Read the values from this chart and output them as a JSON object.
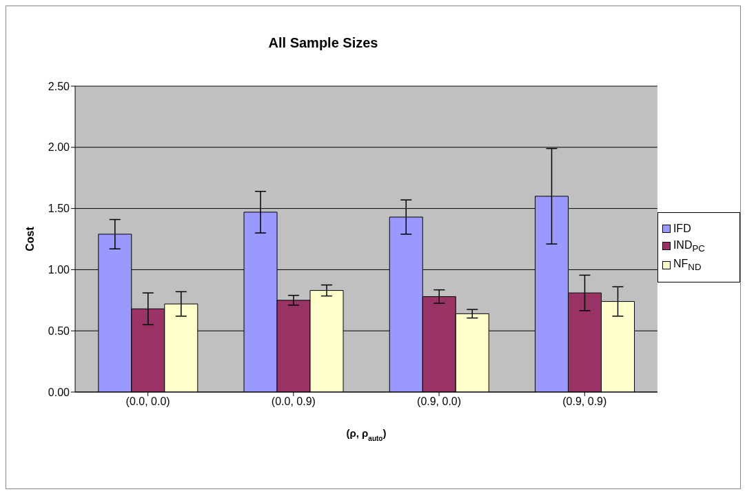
{
  "chart_data": {
    "type": "bar",
    "title": "All Sample Sizes",
    "xlabel": "(ρ, ρ$_{auto}$)",
    "ylabel": "Cost",
    "categories": [
      "(0.0, 0.0)",
      "(0.0, 0.9)",
      "(0.9, 0.0)",
      "(0.9, 0.9)"
    ],
    "series": [
      {
        "name": "IFD",
        "color": "#9999ff",
        "values": [
          1.29,
          1.47,
          1.43,
          1.6
        ],
        "errors": [
          0.12,
          0.17,
          0.14,
          0.39
        ]
      },
      {
        "name": "IND$_{PC}$",
        "color": "#993366",
        "values": [
          0.68,
          0.75,
          0.78,
          0.81
        ],
        "errors": [
          0.13,
          0.04,
          0.055,
          0.145
        ]
      },
      {
        "name": "NF$_{ND}$",
        "color": "#ffffcc",
        "values": [
          0.72,
          0.83,
          0.64,
          0.74
        ],
        "errors": [
          0.1,
          0.045,
          0.035,
          0.12
        ]
      }
    ],
    "ylim": [
      0,
      2.5
    ],
    "yticks": [
      {
        "value": 0,
        "label": "0.00"
      },
      {
        "value": 0.5,
        "label": "0.50"
      },
      {
        "value": 1,
        "label": "1.00"
      },
      {
        "value": 1.5,
        "label": "1.50"
      },
      {
        "value": 2,
        "label": "2.00"
      },
      {
        "value": 2.5,
        "label": "2.50"
      }
    ],
    "grid": "y",
    "legend": "right"
  }
}
